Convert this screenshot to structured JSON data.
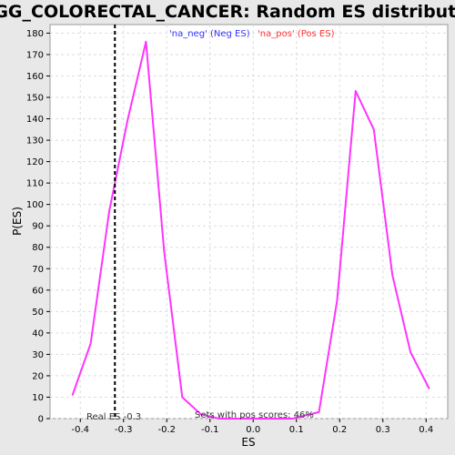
{
  "chart_data": {
    "type": "line",
    "title": "KEGG_COLORECTAL_CANCER: Random ES distribution",
    "xlabel": "ES",
    "ylabel": "P(ES)",
    "xlim": [
      -0.47,
      0.45
    ],
    "ylim": [
      0,
      184
    ],
    "x_ticks": [
      -0.4,
      -0.3,
      -0.2,
      -0.1,
      0.0,
      0.1,
      0.2,
      0.3,
      0.4
    ],
    "x_tick_labels": [
      "-0.4",
      "-0.3",
      "-0.2",
      "-0.1",
      "0.0",
      "0.1",
      "0.2",
      "0.3",
      "0.4"
    ],
    "y_ticks": [
      0,
      10,
      20,
      30,
      40,
      50,
      60,
      70,
      80,
      90,
      100,
      110,
      120,
      130,
      140,
      150,
      160,
      170,
      180
    ],
    "y_tick_labels": [
      "0",
      "10",
      "20",
      "30",
      "40",
      "50",
      "60",
      "70",
      "80",
      "90",
      "100",
      "110",
      "120",
      "130",
      "140",
      "150",
      "160",
      "170",
      "180"
    ],
    "grid": true,
    "legend_position": "top-center",
    "series": [
      {
        "name": "",
        "color": "#ff33ff",
        "x": [
          -0.418,
          -0.376,
          -0.333,
          -0.291,
          -0.248,
          -0.206,
          -0.164,
          -0.121,
          -0.079,
          -0.036,
          0.006,
          0.049,
          0.091,
          0.111,
          0.152,
          0.194,
          0.237,
          0.279,
          0.322,
          0.364,
          0.407
        ],
        "y": [
          11,
          35,
          97,
          139,
          176,
          78,
          10,
          2,
          0,
          0,
          0,
          0,
          0,
          1,
          3,
          55,
          153,
          135,
          67,
          31,
          14
        ]
      }
    ],
    "legend": [
      {
        "label": "'na_neg' (Neg ES)",
        "color": "#3333ff"
      },
      {
        "label": "'na_pos' (Pos ES)",
        "color": "#ff3333"
      }
    ],
    "annotations": {
      "real_es_value": -0.32,
      "real_es_label": "Real ES -0.3",
      "pos_scores_label": "Sets with pos scores: 46%"
    }
  }
}
